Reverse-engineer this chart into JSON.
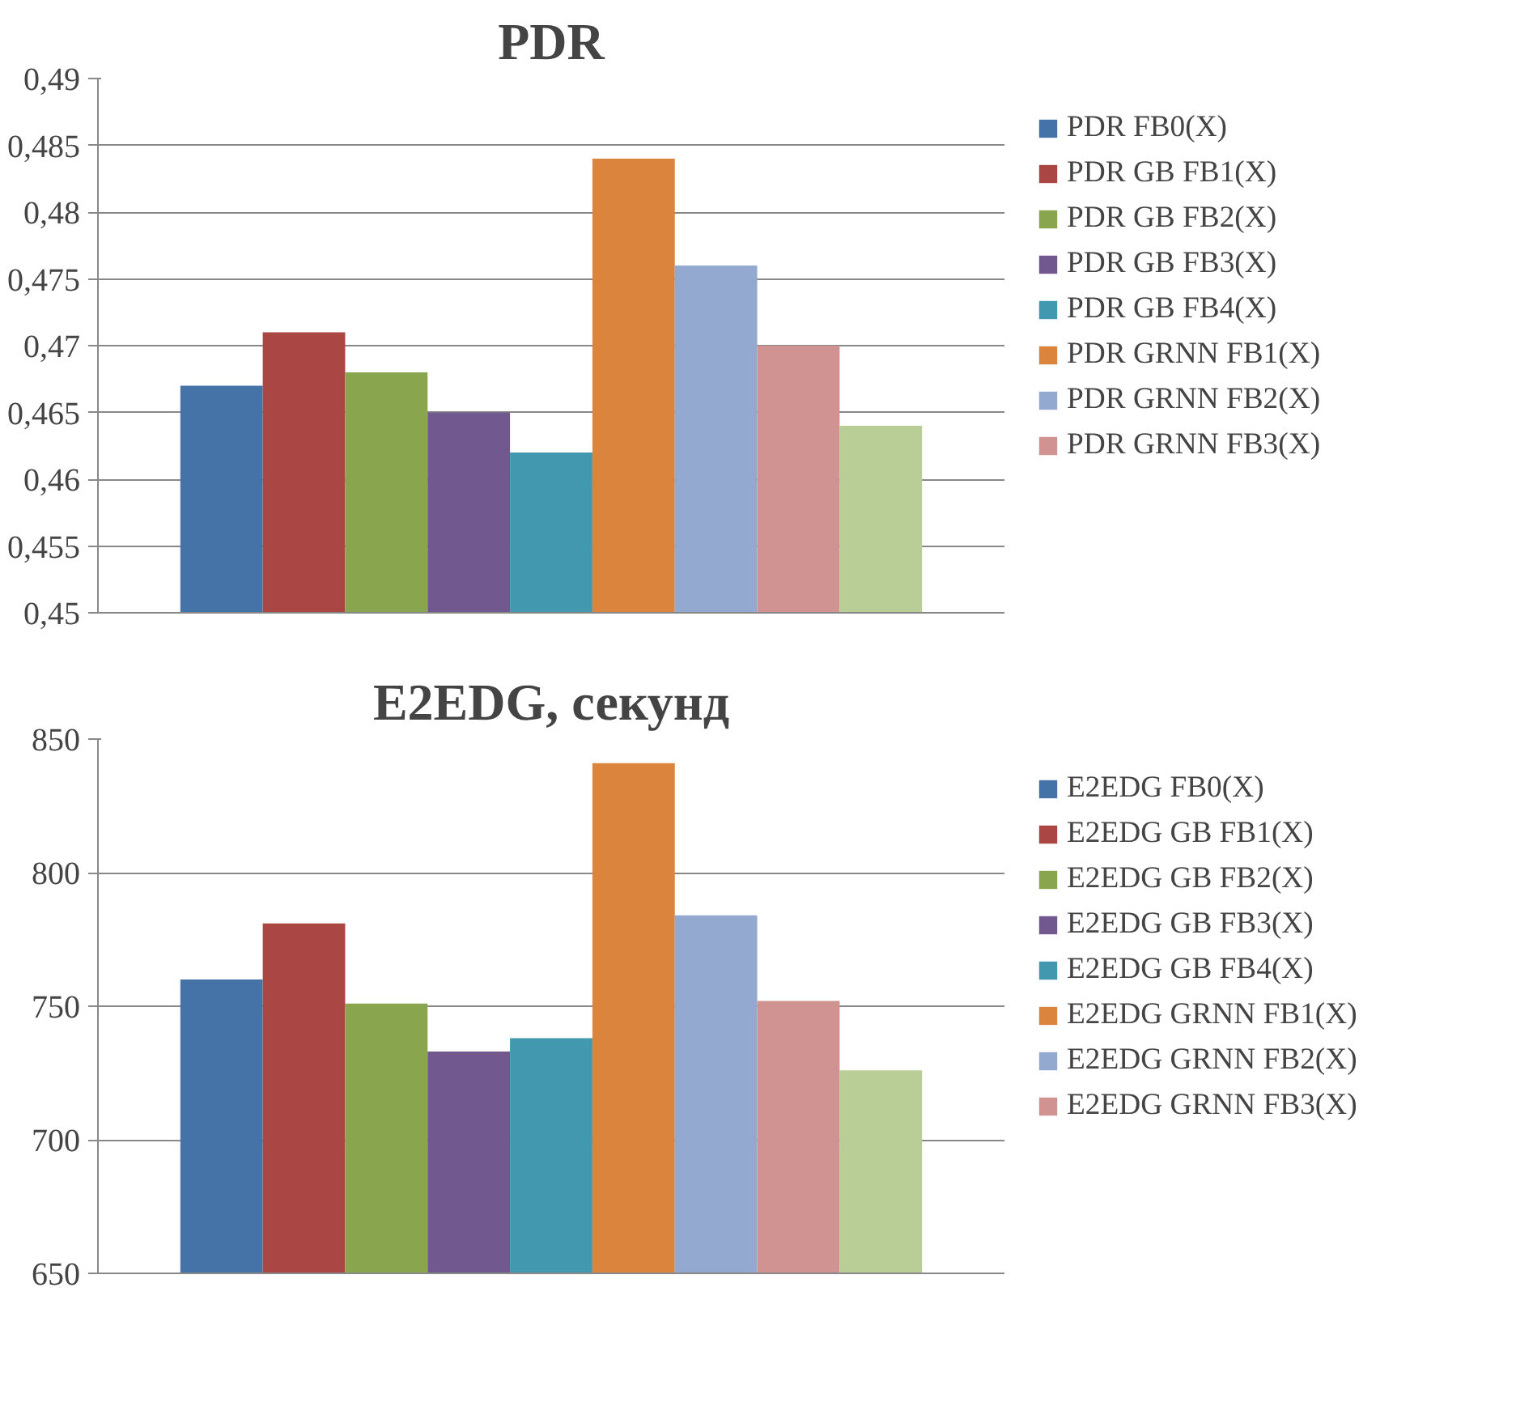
{
  "chart_data": [
    {
      "type": "bar",
      "title": "PDR",
      "categories": [
        null
      ],
      "ylim": [
        0.45,
        0.49
      ],
      "yticks": [
        {
          "value": 0.45,
          "label": "0,45"
        },
        {
          "value": 0.455,
          "label": "0,455"
        },
        {
          "value": 0.46,
          "label": "0,46"
        },
        {
          "value": 0.465,
          "label": "0,465"
        },
        {
          "value": 0.47,
          "label": "0,47"
        },
        {
          "value": 0.475,
          "label": "0,475"
        },
        {
          "value": 0.48,
          "label": "0,48"
        },
        {
          "value": 0.485,
          "label": "0,485"
        },
        {
          "value": 0.49,
          "label": "0,49"
        }
      ],
      "grid": "y",
      "legend": "right",
      "series": [
        {
          "name": "PDR FB0(X)",
          "color": "#4572a7",
          "values": [
            0.467
          ]
        },
        {
          "name": "PDR GB FB1(X)",
          "color": "#aa4643",
          "values": [
            0.471
          ]
        },
        {
          "name": "PDR GB FB2(X)",
          "color": "#89a54e",
          "values": [
            0.468
          ]
        },
        {
          "name": "PDR GB FB3(X)",
          "color": "#71588f",
          "values": [
            0.465
          ]
        },
        {
          "name": "PDR GB FB4(X)",
          "color": "#4198af",
          "values": [
            0.462
          ]
        },
        {
          "name": "PDR GRNN FB1(X)",
          "color": "#db843d",
          "values": [
            0.484
          ]
        },
        {
          "name": "PDR GRNN FB2(X)",
          "color": "#93a9cf",
          "values": [
            0.476
          ]
        },
        {
          "name": "PDR GRNN FB3(X)",
          "color": "#d19392",
          "values": [
            0.47
          ]
        },
        {
          "color": "#b9cd96",
          "values": [
            0.464
          ]
        }
      ]
    },
    {
      "type": "bar",
      "title": "E2EDG, секунд",
      "categories": [
        null
      ],
      "ylim": [
        650,
        850
      ],
      "yticks": [
        650,
        700,
        750,
        800,
        850
      ],
      "grid": "y",
      "legend": "right",
      "series": [
        {
          "name": "E2EDG FB0(X)",
          "color": "#4572a7",
          "values": [
            760
          ]
        },
        {
          "name": "E2EDG GB FB1(X)",
          "color": "#aa4643",
          "values": [
            781
          ]
        },
        {
          "name": "E2EDG GB FB2(X)",
          "color": "#89a54e",
          "values": [
            751
          ]
        },
        {
          "name": "E2EDG GB FB3(X)",
          "color": "#71588f",
          "values": [
            733
          ]
        },
        {
          "name": "E2EDG GB FB4(X)",
          "color": "#4198af",
          "values": [
            738
          ]
        },
        {
          "name": "E2EDG GRNN FB1(X)",
          "color": "#db843d",
          "values": [
            841
          ]
        },
        {
          "name": "E2EDG GRNN FB2(X)",
          "color": "#93a9cf",
          "values": [
            784
          ]
        },
        {
          "name": "E2EDG GRNN FB3(X)",
          "color": "#d19392",
          "values": [
            752
          ]
        },
        {
          "color": "#b9cd96",
          "values": [
            726
          ]
        }
      ]
    }
  ]
}
